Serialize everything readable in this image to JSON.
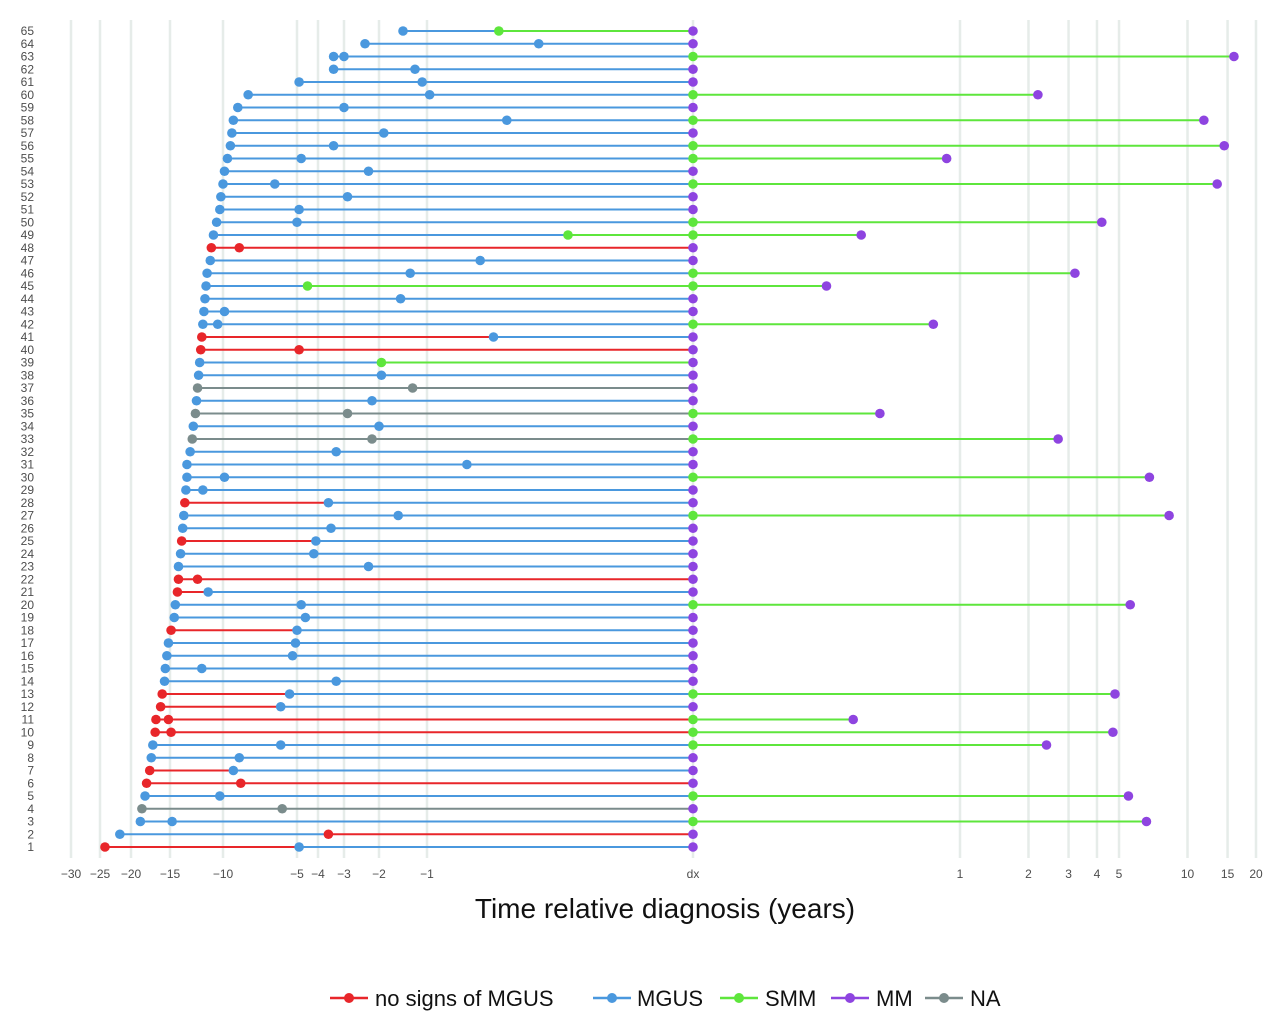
{
  "chart_data": {
    "type": "timeline",
    "xlabel": "Time relative diagnosis (years)",
    "x_ticks": {
      "negative": [
        "-30",
        "-25",
        "-20",
        "-15",
        "-10",
        "-5",
        "-4",
        "-3",
        "-2",
        "-1"
      ],
      "zero": "dx",
      "positive": [
        "1",
        "2",
        "3",
        "4",
        "5",
        "10",
        "15",
        "20"
      ]
    },
    "x_range_years": [
      -30,
      20
    ],
    "categories": [
      {
        "key": "none",
        "label": "no signs of MGUS",
        "color": "#e8262a"
      },
      {
        "key": "MGUS",
        "label": "MGUS",
        "color": "#4a98de"
      },
      {
        "key": "SMM",
        "label": "SMM",
        "color": "#5ee63c"
      },
      {
        "key": "MM",
        "label": "MM",
        "color": "#8e44e0"
      },
      {
        "key": "NA",
        "label": "NA",
        "color": "#7b8c8c"
      }
    ],
    "patients": [
      {
        "id": 1,
        "points": [
          [
            -24.2,
            "none"
          ],
          [
            -4.9,
            "MGUS"
          ],
          [
            0,
            "MM"
          ]
        ]
      },
      {
        "id": 2,
        "points": [
          [
            -21.8,
            "MGUS"
          ],
          [
            -3.6,
            "none"
          ],
          [
            0,
            "MM"
          ]
        ]
      },
      {
        "id": 3,
        "points": [
          [
            -18.8,
            "MGUS"
          ],
          [
            -14.8,
            "MGUS"
          ],
          [
            0,
            "SMM"
          ],
          [
            6.6,
            "MM"
          ]
        ]
      },
      {
        "id": 4,
        "points": [
          [
            -18.6,
            "NA"
          ],
          [
            -6.0,
            "NA"
          ],
          [
            0,
            "MM"
          ]
        ]
      },
      {
        "id": 5,
        "points": [
          [
            -18.2,
            "MGUS"
          ],
          [
            -10.3,
            "MGUS"
          ],
          [
            0,
            "SMM"
          ],
          [
            5.5,
            "MM"
          ]
        ]
      },
      {
        "id": 6,
        "points": [
          [
            -18.0,
            "none"
          ],
          [
            -8.8,
            "none"
          ],
          [
            0,
            "MM"
          ]
        ]
      },
      {
        "id": 7,
        "points": [
          [
            -17.6,
            "none"
          ],
          [
            -9.3,
            "MGUS"
          ],
          [
            0,
            "MM"
          ]
        ]
      },
      {
        "id": 8,
        "points": [
          [
            -17.4,
            "MGUS"
          ],
          [
            -8.9,
            "MGUS"
          ],
          [
            0,
            "MM"
          ]
        ]
      },
      {
        "id": 9,
        "points": [
          [
            -17.2,
            "MGUS"
          ],
          [
            -6.1,
            "MGUS"
          ],
          [
            0,
            "SMM"
          ],
          [
            2.4,
            "MM"
          ]
        ]
      },
      {
        "id": 10,
        "points": [
          [
            -16.9,
            "none"
          ],
          [
            -14.9,
            "none"
          ],
          [
            0,
            "SMM"
          ],
          [
            4.7,
            "MM"
          ]
        ]
      },
      {
        "id": 11,
        "points": [
          [
            -16.8,
            "none"
          ],
          [
            -15.2,
            "none"
          ],
          [
            0,
            "SMM"
          ],
          [
            0.6,
            "MM"
          ]
        ]
      },
      {
        "id": 12,
        "points": [
          [
            -16.2,
            "none"
          ],
          [
            -6.1,
            "MGUS"
          ],
          [
            0,
            "MM"
          ]
        ]
      },
      {
        "id": 13,
        "points": [
          [
            -16.0,
            "none"
          ],
          [
            -5.5,
            "MGUS"
          ],
          [
            0,
            "SMM"
          ],
          [
            4.8,
            "MM"
          ]
        ]
      },
      {
        "id": 14,
        "points": [
          [
            -15.7,
            "MGUS"
          ],
          [
            -3.3,
            "MGUS"
          ],
          [
            0,
            "MM"
          ]
        ]
      },
      {
        "id": 15,
        "points": [
          [
            -15.6,
            "MGUS"
          ],
          [
            -12.0,
            "MGUS"
          ],
          [
            0,
            "MM"
          ]
        ]
      },
      {
        "id": 16,
        "points": [
          [
            -15.4,
            "MGUS"
          ],
          [
            -5.3,
            "MGUS"
          ],
          [
            0,
            "MM"
          ]
        ]
      },
      {
        "id": 17,
        "points": [
          [
            -15.2,
            "MGUS"
          ],
          [
            -5.1,
            "MGUS"
          ],
          [
            0,
            "MM"
          ]
        ]
      },
      {
        "id": 18,
        "points": [
          [
            -14.9,
            "none"
          ],
          [
            -5.0,
            "MGUS"
          ],
          [
            0,
            "MM"
          ]
        ]
      },
      {
        "id": 19,
        "points": [
          [
            -14.6,
            "MGUS"
          ],
          [
            -4.6,
            "MGUS"
          ],
          [
            0,
            "MM"
          ]
        ]
      },
      {
        "id": 20,
        "points": [
          [
            -14.5,
            "MGUS"
          ],
          [
            -4.8,
            "MGUS"
          ],
          [
            0,
            "SMM"
          ],
          [
            5.6,
            "MM"
          ]
        ]
      },
      {
        "id": 21,
        "points": [
          [
            -14.3,
            "none"
          ],
          [
            -11.4,
            "MGUS"
          ],
          [
            0,
            "MM"
          ]
        ]
      },
      {
        "id": 22,
        "points": [
          [
            -14.2,
            "none"
          ],
          [
            -12.4,
            "none"
          ],
          [
            0,
            "MM"
          ]
        ]
      },
      {
        "id": 23,
        "points": [
          [
            -14.2,
            "MGUS"
          ],
          [
            -2.3,
            "MGUS"
          ],
          [
            0,
            "MM"
          ]
        ]
      },
      {
        "id": 24,
        "points": [
          [
            -14.0,
            "MGUS"
          ],
          [
            -4.2,
            "MGUS"
          ],
          [
            0,
            "MM"
          ]
        ]
      },
      {
        "id": 25,
        "points": [
          [
            -13.9,
            "none"
          ],
          [
            -4.1,
            "MGUS"
          ],
          [
            0,
            "MM"
          ]
        ]
      },
      {
        "id": 26,
        "points": [
          [
            -13.8,
            "MGUS"
          ],
          [
            -3.5,
            "MGUS"
          ],
          [
            0,
            "MM"
          ]
        ]
      },
      {
        "id": 27,
        "points": [
          [
            -13.7,
            "MGUS"
          ],
          [
            -1.6,
            "MGUS"
          ],
          [
            0,
            "SMM"
          ],
          [
            8.3,
            "MM"
          ]
        ]
      },
      {
        "id": 28,
        "points": [
          [
            -13.6,
            "none"
          ],
          [
            -3.6,
            "MGUS"
          ],
          [
            0,
            "MM"
          ]
        ]
      },
      {
        "id": 29,
        "points": [
          [
            -13.5,
            "MGUS"
          ],
          [
            -11.9,
            "MGUS"
          ],
          [
            0,
            "MM"
          ]
        ]
      },
      {
        "id": 30,
        "points": [
          [
            -13.4,
            "MGUS"
          ],
          [
            -9.9,
            "MGUS"
          ],
          [
            0,
            "SMM"
          ],
          [
            6.8,
            "MM"
          ]
        ]
      },
      {
        "id": 31,
        "points": [
          [
            -13.4,
            "MGUS"
          ],
          [
            -0.85,
            "MGUS"
          ],
          [
            0,
            "MM"
          ]
        ]
      },
      {
        "id": 32,
        "points": [
          [
            -13.1,
            "MGUS"
          ],
          [
            -3.3,
            "MGUS"
          ],
          [
            0,
            "MM"
          ]
        ]
      },
      {
        "id": 33,
        "points": [
          [
            -12.9,
            "NA"
          ],
          [
            -2.2,
            "NA"
          ],
          [
            0,
            "SMM"
          ],
          [
            2.7,
            "MM"
          ]
        ]
      },
      {
        "id": 34,
        "points": [
          [
            -12.8,
            "MGUS"
          ],
          [
            -2.0,
            "MGUS"
          ],
          [
            0,
            "MM"
          ]
        ]
      },
      {
        "id": 35,
        "points": [
          [
            -12.6,
            "NA"
          ],
          [
            -2.9,
            "NA"
          ],
          [
            0,
            "SMM"
          ],
          [
            0.7,
            "MM"
          ]
        ]
      },
      {
        "id": 36,
        "points": [
          [
            -12.5,
            "MGUS"
          ],
          [
            -2.2,
            "MGUS"
          ],
          [
            0,
            "MM"
          ]
        ]
      },
      {
        "id": 37,
        "points": [
          [
            -12.4,
            "NA"
          ],
          [
            -1.3,
            "NA"
          ],
          [
            0,
            "MM"
          ]
        ]
      },
      {
        "id": 38,
        "points": [
          [
            -12.3,
            "MGUS"
          ],
          [
            -1.95,
            "MGUS"
          ],
          [
            0,
            "MM"
          ]
        ]
      },
      {
        "id": 39,
        "points": [
          [
            -12.2,
            "MGUS"
          ],
          [
            -1.95,
            "SMM"
          ],
          [
            0,
            "MM"
          ]
        ]
      },
      {
        "id": 40,
        "points": [
          [
            -12.1,
            "none"
          ],
          [
            -4.9,
            "none"
          ],
          [
            0,
            "MM"
          ]
        ]
      },
      {
        "id": 41,
        "points": [
          [
            -12.0,
            "none"
          ],
          [
            -0.75,
            "MGUS"
          ],
          [
            0,
            "MM"
          ]
        ]
      },
      {
        "id": 42,
        "points": [
          [
            -11.9,
            "MGUS"
          ],
          [
            -10.5,
            "MGUS"
          ],
          [
            0,
            "SMM"
          ],
          [
            0.9,
            "MM"
          ]
        ]
      },
      {
        "id": 43,
        "points": [
          [
            -11.8,
            "MGUS"
          ],
          [
            -9.9,
            "MGUS"
          ],
          [
            0,
            "MM"
          ]
        ]
      },
      {
        "id": 44,
        "points": [
          [
            -11.7,
            "MGUS"
          ],
          [
            -1.55,
            "MGUS"
          ],
          [
            0,
            "MM"
          ]
        ]
      },
      {
        "id": 45,
        "points": [
          [
            -11.6,
            "MGUS"
          ],
          [
            -4.5,
            "SMM"
          ],
          [
            0,
            "SMM"
          ],
          [
            0.5,
            "MM"
          ]
        ]
      },
      {
        "id": 46,
        "points": [
          [
            -11.5,
            "MGUS"
          ],
          [
            -1.35,
            "MGUS"
          ],
          [
            0,
            "SMM"
          ],
          [
            3.2,
            "MM"
          ]
        ]
      },
      {
        "id": 47,
        "points": [
          [
            -11.2,
            "MGUS"
          ],
          [
            -0.8,
            "MGUS"
          ],
          [
            0,
            "MM"
          ]
        ]
      },
      {
        "id": 48,
        "points": [
          [
            -11.1,
            "none"
          ],
          [
            -8.9,
            "none"
          ],
          [
            0,
            "MM"
          ]
        ]
      },
      {
        "id": 49,
        "points": [
          [
            -10.9,
            "MGUS"
          ],
          [
            -0.47,
            "SMM"
          ],
          [
            0,
            "SMM"
          ],
          [
            0.63,
            "MM"
          ]
        ]
      },
      {
        "id": 50,
        "points": [
          [
            -10.6,
            "MGUS"
          ],
          [
            -5.0,
            "MGUS"
          ],
          [
            0,
            "SMM"
          ],
          [
            4.2,
            "MM"
          ]
        ]
      },
      {
        "id": 51,
        "points": [
          [
            -10.3,
            "MGUS"
          ],
          [
            -4.9,
            "MGUS"
          ],
          [
            0,
            "MM"
          ]
        ]
      },
      {
        "id": 52,
        "points": [
          [
            -10.2,
            "MGUS"
          ],
          [
            -2.9,
            "MGUS"
          ],
          [
            0,
            "MM"
          ]
        ]
      },
      {
        "id": 53,
        "points": [
          [
            -10.0,
            "MGUS"
          ],
          [
            -6.5,
            "MGUS"
          ],
          [
            0,
            "SMM"
          ],
          [
            13.5,
            "MM"
          ]
        ]
      },
      {
        "id": 54,
        "points": [
          [
            -9.9,
            "MGUS"
          ],
          [
            -2.3,
            "MGUS"
          ],
          [
            0,
            "MM"
          ]
        ]
      },
      {
        "id": 55,
        "points": [
          [
            -9.7,
            "MGUS"
          ],
          [
            -4.8,
            "MGUS"
          ],
          [
            0,
            "SMM"
          ],
          [
            0.95,
            "MM"
          ]
        ]
      },
      {
        "id": 56,
        "points": [
          [
            -9.5,
            "MGUS"
          ],
          [
            -3.4,
            "MGUS"
          ],
          [
            0,
            "SMM"
          ],
          [
            14.5,
            "MM"
          ]
        ]
      },
      {
        "id": 57,
        "points": [
          [
            -9.4,
            "MGUS"
          ],
          [
            -1.9,
            "MGUS"
          ],
          [
            0,
            "MM"
          ]
        ]
      },
      {
        "id": 58,
        "points": [
          [
            -9.3,
            "MGUS"
          ],
          [
            -0.7,
            "MGUS"
          ],
          [
            0,
            "SMM"
          ],
          [
            11.8,
            "MM"
          ]
        ]
      },
      {
        "id": 59,
        "points": [
          [
            -9.0,
            "MGUS"
          ],
          [
            -3.0,
            "MGUS"
          ],
          [
            0,
            "MM"
          ]
        ]
      },
      {
        "id": 60,
        "points": [
          [
            -8.3,
            "MGUS"
          ],
          [
            -0.99,
            "MGUS"
          ],
          [
            0,
            "SMM"
          ],
          [
            2.2,
            "MM"
          ]
        ]
      },
      {
        "id": 61,
        "points": [
          [
            -4.9,
            "MGUS"
          ],
          [
            -1.1,
            "MGUS"
          ],
          [
            0,
            "MM"
          ]
        ]
      },
      {
        "id": 62,
        "points": [
          [
            -3.4,
            "MGUS"
          ],
          [
            -1.25,
            "MGUS"
          ],
          [
            0,
            "MM"
          ]
        ]
      },
      {
        "id": 63,
        "points": [
          [
            -3.4,
            "MGUS"
          ],
          [
            -3.0,
            "MGUS"
          ],
          [
            0,
            "SMM"
          ],
          [
            16.0,
            "MM"
          ]
        ]
      },
      {
        "id": 64,
        "points": [
          [
            -2.4,
            "MGUS"
          ],
          [
            -0.58,
            "MGUS"
          ],
          [
            0,
            "MM"
          ]
        ]
      },
      {
        "id": 65,
        "points": [
          [
            -1.5,
            "MGUS"
          ],
          [
            -0.73,
            "SMM"
          ],
          [
            0,
            "MM"
          ]
        ]
      }
    ]
  }
}
